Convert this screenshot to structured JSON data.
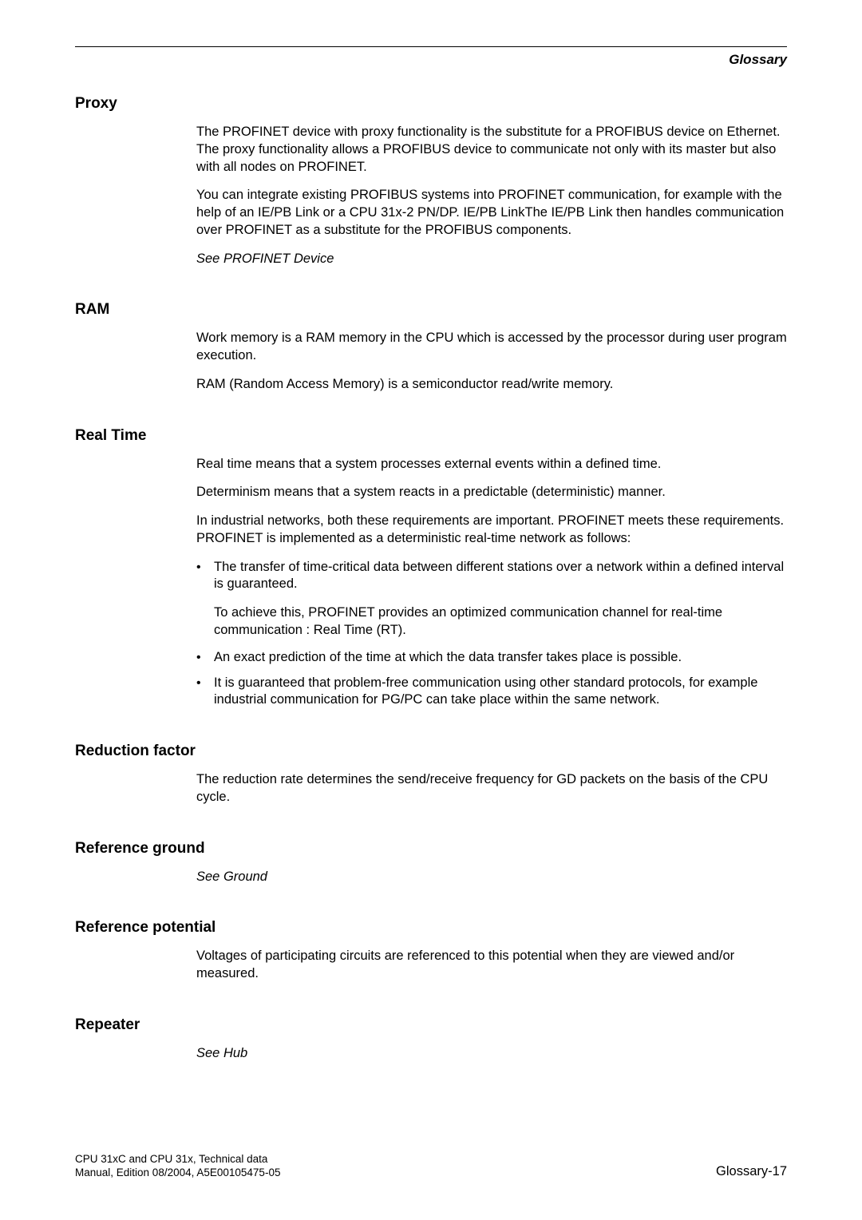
{
  "header": {
    "running_title": "Glossary"
  },
  "sections": {
    "proxy": {
      "title": "Proxy",
      "p1": "The PROFINET device with proxy functionality is the substitute for a PROFIBUS device on Ethernet. The proxy functionality allows a PROFIBUS device to communicate not only with its master but also with all nodes on PROFINET.",
      "p2": "You can integrate existing PROFIBUS systems into PROFINET communication, for example with the help of an IE/PB Link or a CPU 31x-2 PN/DP. IE/PB LinkThe IE/PB Link then handles communication over PROFINET as a substitute for the PROFIBUS components.",
      "p3": "See PROFINET Device"
    },
    "ram": {
      "title": "RAM",
      "p1": "Work memory is a RAM memory in the CPU which is accessed by the processor during user program execution.",
      "p2": "RAM (Random Access Memory) is a semiconductor read/write memory."
    },
    "realtime": {
      "title": "Real Time",
      "p1": "Real time means that a system processes external events within a defined time.",
      "p2": "Determinism means that a system reacts in a predictable (deterministic) manner.",
      "p3": "In industrial networks, both these requirements are important. PROFINET meets these requirements. PROFINET is implemented as a deterministic real-time network as follows:",
      "b1": "The transfer of time-critical data between different stations over a network within a defined interval is guaranteed.",
      "b1_sub": "To achieve this, PROFINET provides an optimized communication channel for real-time communication : Real Time (RT).",
      "b2": "An exact prediction of the time at which the data transfer takes place is possible.",
      "b3": "It is guaranteed that problem-free communication using other standard protocols, for example industrial communication for PG/PC can take place within the same network."
    },
    "reduction": {
      "title": "Reduction factor",
      "p1": "The reduction rate determines the send/receive frequency for GD packets on the basis of the CPU cycle."
    },
    "refground": {
      "title": "Reference ground",
      "p1": "See Ground"
    },
    "refpotential": {
      "title": "Reference potential",
      "p1": "Voltages of participating circuits are referenced to this potential when they are viewed and/or measured."
    },
    "repeater": {
      "title": "Repeater",
      "p1": "See Hub"
    }
  },
  "footer": {
    "line1": "CPU 31xC and CPU 31x, Technical data",
    "line2": "Manual, Edition 08/2004, A5E00105475-05",
    "page": "Glossary-17"
  }
}
